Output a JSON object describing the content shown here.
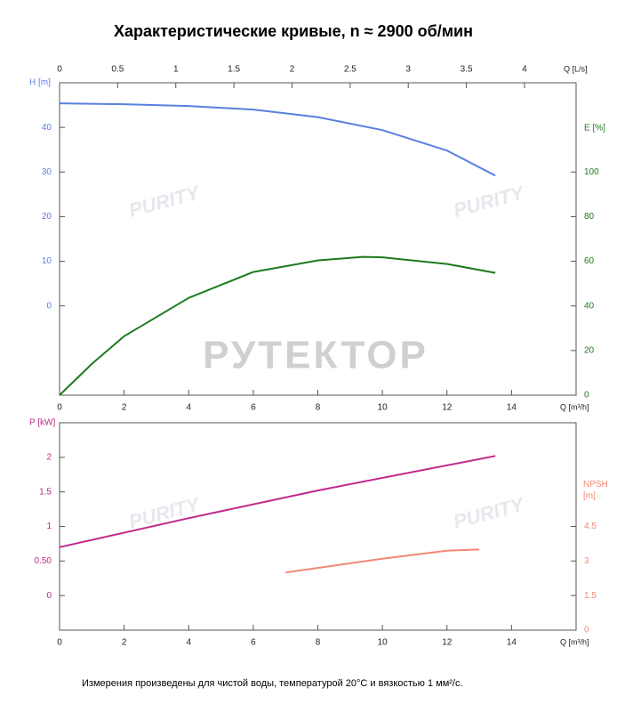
{
  "chart_data": [
    {
      "type": "line",
      "title": "Характеристические кривые, n ≈ 2900 об/мин",
      "xlabel": "Q [m³/h]",
      "xlim": [
        0,
        16
      ],
      "xticks": [
        0,
        2,
        4,
        6,
        8,
        10,
        12,
        14
      ],
      "x2label": "Q [L/s]",
      "x2lim": [
        0,
        4.444
      ],
      "x2ticks": [
        0,
        0.5,
        1,
        1.5,
        2,
        2.5,
        3,
        3.5,
        4
      ],
      "ylabel": "H [m]",
      "ylim": [
        -20,
        50
      ],
      "yticks": [
        0,
        10,
        20,
        30,
        40
      ],
      "y2label": "E [%]",
      "y2lim": [
        0,
        140
      ],
      "y2ticks": [
        0,
        20,
        40,
        60,
        80,
        100
      ],
      "series": [
        {
          "name": "H",
          "color": "#5b7fe0",
          "x": [
            0,
            2,
            4,
            6,
            8,
            10,
            12,
            13.5
          ],
          "values": [
            45.4,
            45.2,
            44.8,
            44.0,
            42.3,
            39.4,
            34.8,
            29.2
          ]
        },
        {
          "name": "E",
          "color": "#1e7a1e",
          "axis": "y2",
          "x": [
            0,
            1,
            2,
            4,
            6,
            8,
            9.4,
            10,
            12,
            13.5
          ],
          "values": [
            0,
            14,
            26.4,
            43.6,
            55.2,
            60.4,
            62,
            61.8,
            58.8,
            54.8
          ]
        }
      ]
    },
    {
      "type": "line",
      "xlabel": "Q [m³/h]",
      "xlim": [
        0,
        16
      ],
      "xticks": [
        0,
        2,
        4,
        6,
        8,
        10,
        12,
        14
      ],
      "ylabel": "P [kW]",
      "ylim": [
        -0.5,
        2.5
      ],
      "yticks": [
        0,
        {
          "value": 0.5,
          "label": "0.50"
        },
        1,
        1.5,
        2
      ],
      "y2label": "NPSH [m]",
      "y2lim": [
        0,
        9
      ],
      "y2ticks": [
        0,
        1.5,
        3,
        4.5
      ],
      "series": [
        {
          "name": "P",
          "color": "#c0288a",
          "x": [
            0,
            4,
            8,
            13.5
          ],
          "values": [
            0.7,
            1.12,
            1.52,
            2.02
          ]
        },
        {
          "name": "NPSH",
          "color": "#f08878",
          "axis": "y2",
          "x": [
            7,
            8,
            10,
            12,
            13
          ],
          "values": [
            2.5,
            2.7,
            3.1,
            3.45,
            3.5
          ]
        }
      ]
    }
  ],
  "watermark": "РУТЕКТОР",
  "logo": "PURITY",
  "note": "Измерения произведены для чистой воды, температурой 20°C и вязкостью 1 мм²/с."
}
